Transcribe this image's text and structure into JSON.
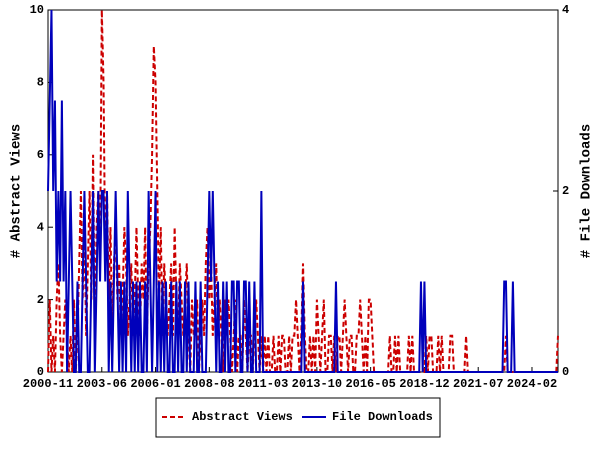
{
  "chart_data": {
    "type": "line",
    "ylabel": "# Abstract Views",
    "y2label": "# File Downloads",
    "x": [
      "2000-11",
      "2000-12",
      "2001-01",
      "2001-02",
      "2001-03",
      "2001-04",
      "2001-05",
      "2001-06",
      "2001-07",
      "2001-08",
      "2001-09",
      "2001-10",
      "2001-11",
      "2001-12",
      "2002-01",
      "2002-02",
      "2002-03",
      "2002-04",
      "2002-05",
      "2002-06",
      "2002-07",
      "2002-08",
      "2002-09",
      "2002-10",
      "2002-11",
      "2002-12",
      "2003-01",
      "2003-02",
      "2003-03",
      "2003-04",
      "2003-05",
      "2003-06",
      "2003-07",
      "2003-08",
      "2003-09",
      "2003-10",
      "2003-11",
      "2003-12",
      "2004-01",
      "2004-02",
      "2004-03",
      "2004-04",
      "2004-05",
      "2004-06",
      "2004-07",
      "2004-08",
      "2004-09",
      "2004-10",
      "2004-11",
      "2004-12",
      "2005-01",
      "2005-02",
      "2005-03",
      "2005-04",
      "2005-05",
      "2005-06",
      "2005-07",
      "2005-08",
      "2005-09",
      "2005-10",
      "2005-11",
      "2005-12",
      "2006-01",
      "2006-02",
      "2006-03",
      "2006-04",
      "2006-05",
      "2006-06",
      "2006-07",
      "2006-08",
      "2006-09",
      "2006-10",
      "2006-11",
      "2006-12",
      "2007-01",
      "2007-02",
      "2007-03",
      "2007-04",
      "2007-05",
      "2007-06",
      "2007-07",
      "2007-08",
      "2007-09",
      "2007-10",
      "2007-11",
      "2007-12",
      "2008-01",
      "2008-02",
      "2008-03",
      "2008-04",
      "2008-05",
      "2008-06",
      "2008-07",
      "2008-08",
      "2008-09",
      "2008-10",
      "2008-11",
      "2008-12",
      "2009-01",
      "2009-02",
      "2009-03",
      "2009-04",
      "2009-05",
      "2009-06",
      "2009-07",
      "2009-08",
      "2009-09",
      "2009-10",
      "2009-11",
      "2009-12",
      "2010-01",
      "2010-02",
      "2010-03",
      "2010-04",
      "2010-05",
      "2010-06",
      "2010-07",
      "2010-08",
      "2010-09",
      "2010-10",
      "2010-11",
      "2010-12",
      "2011-01",
      "2011-02",
      "2011-03",
      "2011-04",
      "2011-05",
      "2011-06",
      "2011-07",
      "2011-08",
      "2011-09",
      "2011-10",
      "2011-11",
      "2011-12",
      "2012-01",
      "2012-02",
      "2012-03",
      "2012-04",
      "2012-05",
      "2012-06",
      "2012-07",
      "2012-08",
      "2012-09",
      "2012-10",
      "2012-11",
      "2012-12",
      "2013-01",
      "2013-02",
      "2013-03",
      "2013-04",
      "2013-05",
      "2013-06",
      "2013-07",
      "2013-08",
      "2013-09",
      "2013-10",
      "2013-11",
      "2013-12",
      "2014-01",
      "2014-02",
      "2014-03",
      "2014-04",
      "2014-05",
      "2014-06",
      "2014-07",
      "2014-08",
      "2014-09",
      "2014-10",
      "2014-11",
      "2014-12",
      "2015-01",
      "2015-02",
      "2015-03",
      "2015-04",
      "2015-05",
      "2015-06",
      "2015-07",
      "2015-08",
      "2015-09",
      "2015-10",
      "2015-11",
      "2015-12",
      "2016-01",
      "2016-02",
      "2016-03",
      "2016-04",
      "2016-05",
      "2016-06",
      "2016-07",
      "2016-08",
      "2016-09",
      "2016-10",
      "2016-11",
      "2016-12",
      "2017-01",
      "2017-02",
      "2017-03",
      "2017-04",
      "2017-05",
      "2017-06",
      "2017-07",
      "2017-08",
      "2017-09",
      "2017-10",
      "2017-11",
      "2017-12",
      "2018-01",
      "2018-02",
      "2018-03",
      "2018-04",
      "2018-05",
      "2018-06",
      "2018-07",
      "2018-08",
      "2018-09",
      "2018-10",
      "2018-11",
      "2018-12",
      "2019-01",
      "2019-02",
      "2019-03",
      "2019-04",
      "2019-05",
      "2019-06",
      "2019-07",
      "2019-08",
      "2019-09",
      "2019-10",
      "2019-11",
      "2019-12",
      "2020-01",
      "2020-02",
      "2020-03",
      "2020-04",
      "2020-05",
      "2020-06",
      "2020-07",
      "2020-08",
      "2020-09",
      "2020-10",
      "2020-11",
      "2020-12",
      "2021-01",
      "2021-02",
      "2021-03",
      "2021-04",
      "2021-05",
      "2021-06",
      "2021-07",
      "2021-08",
      "2021-09",
      "2021-10",
      "2021-11",
      "2021-12",
      "2022-01",
      "2022-02",
      "2022-03",
      "2022-04",
      "2022-05",
      "2022-06",
      "2022-07",
      "2022-08",
      "2022-09",
      "2022-10",
      "2022-11",
      "2022-12",
      "2023-01",
      "2023-02",
      "2023-03",
      "2023-04",
      "2023-05",
      "2023-06",
      "2023-07",
      "2023-08",
      "2023-09",
      "2023-10",
      "2023-11",
      "2023-12",
      "2024-01",
      "2024-02",
      "2024-03",
      "2024-04",
      "2024-05",
      "2024-06",
      "2024-07",
      "2024-08",
      "2024-09",
      "2024-10",
      "2024-11",
      "2024-12",
      "2025-01",
      "2025-02",
      "2025-03",
      "2025-04",
      "2025-05"
    ],
    "xticks": [
      "2000-11",
      "2003-06",
      "2006-01",
      "2008-08",
      "2011-03",
      "2013-10",
      "2016-05",
      "2018-12",
      "2021-07",
      "2024-02"
    ],
    "ylim": [
      0,
      10
    ],
    "yticks": [
      0,
      2,
      4,
      6,
      8,
      10
    ],
    "y2lim": [
      0,
      4
    ],
    "y2ticks": [
      0,
      2,
      4
    ],
    "series": [
      {
        "name": "Abstract Views",
        "color": "#cc0000",
        "dashed": true,
        "values": [
          0,
          2,
          0,
          1,
          0,
          2,
          3,
          1,
          0,
          1,
          2,
          1,
          0,
          1,
          0,
          2,
          0,
          1,
          3,
          5,
          2,
          4,
          1,
          3,
          5,
          2,
          6,
          1,
          4,
          5,
          3,
          10,
          8,
          3,
          5,
          2,
          4,
          1,
          3,
          4,
          2,
          3,
          1,
          2,
          4,
          3,
          1,
          2,
          3,
          1,
          2,
          4,
          2,
          1,
          3,
          2,
          4,
          1,
          3,
          4,
          6,
          9,
          8,
          5,
          2,
          4,
          1,
          3,
          2,
          1,
          2,
          3,
          1,
          4,
          2,
          1,
          3,
          2,
          1,
          2,
          3,
          1,
          0,
          2,
          1,
          1,
          2,
          0,
          1,
          2,
          1,
          3,
          4,
          2,
          3,
          1,
          2,
          3,
          1,
          2,
          1,
          0,
          2,
          1,
          2,
          1,
          0,
          1,
          2,
          0,
          1,
          1,
          0,
          2,
          1,
          0,
          1,
          1,
          0,
          1,
          2,
          1,
          0,
          1,
          0,
          1,
          0,
          1,
          0,
          0,
          1,
          0,
          0,
          1,
          0,
          1,
          1,
          0,
          0,
          1,
          0,
          1,
          1,
          2,
          1,
          0,
          1,
          3,
          1,
          0,
          0,
          1,
          0,
          1,
          0,
          2,
          1,
          0,
          1,
          2,
          0,
          0,
          1,
          1,
          0,
          1,
          0,
          1,
          1,
          0,
          1,
          2,
          1,
          0,
          1,
          1,
          0,
          0,
          1,
          1,
          2,
          1,
          0,
          1,
          0,
          2,
          2,
          1,
          0,
          0,
          0,
          0,
          0,
          0,
          0,
          0,
          0,
          1,
          0,
          0,
          1,
          0,
          1,
          0,
          0,
          0,
          0,
          0,
          1,
          0,
          1,
          0,
          0,
          0,
          0,
          0,
          0,
          0,
          1,
          0,
          1,
          1,
          0,
          0,
          0,
          1,
          0,
          1,
          0,
          0,
          0,
          0,
          1,
          1,
          0,
          0,
          0,
          0,
          0,
          0,
          0,
          1,
          0,
          0,
          0,
          0,
          0,
          0,
          0,
          0,
          0,
          0,
          0,
          0,
          0,
          0,
          0,
          0,
          0,
          0,
          0,
          0,
          0,
          0,
          1,
          0,
          0,
          0,
          0,
          0,
          0,
          0,
          0,
          0,
          0,
          0,
          0,
          0,
          0,
          0,
          0,
          0,
          0,
          0,
          0,
          0,
          0,
          0,
          0,
          0,
          0,
          0,
          0,
          0,
          1
        ]
      },
      {
        "name": "File Downloads",
        "color": "#0000bb",
        "axis": "y2",
        "values": [
          2,
          3,
          4,
          2,
          3,
          1,
          2,
          1,
          3,
          1,
          2,
          0,
          1,
          2,
          1,
          0,
          0,
          1,
          0,
          0,
          1,
          2,
          1,
          0,
          0,
          1,
          2,
          0,
          1,
          2,
          1,
          2,
          2,
          1,
          2,
          0,
          1,
          0,
          1,
          2,
          1,
          0,
          1,
          0,
          1,
          0,
          2,
          1,
          0,
          1,
          0,
          1,
          0,
          1,
          0,
          0,
          1,
          0,
          2,
          1,
          0,
          1,
          2,
          0,
          1,
          0,
          1,
          0,
          1,
          0,
          0,
          1,
          0,
          0,
          1,
          0,
          1,
          0,
          0,
          1,
          0,
          1,
          0,
          0,
          0,
          1,
          0,
          0,
          1,
          0,
          0,
          0,
          1,
          2,
          1,
          2,
          1,
          0,
          1,
          0,
          0,
          1,
          0,
          1,
          0,
          0,
          1,
          1,
          0,
          1,
          1,
          0,
          0,
          1,
          1,
          0,
          1,
          0,
          0,
          1,
          0,
          0,
          0,
          2,
          0,
          0,
          0,
          0,
          0,
          0,
          0,
          0,
          0,
          0,
          0,
          0,
          0,
          0,
          0,
          0,
          0,
          0,
          0,
          0,
          0,
          0,
          0,
          1,
          0,
          0,
          0,
          0,
          0,
          0,
          0,
          0,
          0,
          0,
          0,
          0,
          0,
          0,
          0,
          0,
          0,
          0,
          1,
          0,
          0,
          0,
          0,
          0,
          0,
          0,
          0,
          0,
          0,
          0,
          0,
          0,
          0,
          0,
          0,
          0,
          0,
          0,
          0,
          0,
          0,
          0,
          0,
          0,
          0,
          0,
          0,
          0,
          0,
          0,
          0,
          0,
          0,
          0,
          0,
          0,
          0,
          0,
          0,
          0,
          0,
          0,
          0,
          0,
          0,
          0,
          0,
          1,
          0,
          1,
          0,
          0,
          0,
          0,
          0,
          0,
          0,
          0,
          0,
          0,
          0,
          0,
          0,
          0,
          0,
          0,
          0,
          0,
          0,
          0,
          0,
          0,
          0,
          0,
          0,
          0,
          0,
          0,
          0,
          0,
          0,
          0,
          0,
          0,
          0,
          0,
          0,
          0,
          0,
          0,
          0,
          0,
          0,
          0,
          0,
          1,
          1,
          0,
          0,
          0,
          1,
          0,
          0,
          0,
          0,
          0,
          0,
          0,
          0,
          0,
          0,
          0,
          0,
          0,
          0,
          0,
          0,
          0,
          0,
          0,
          0,
          0,
          0,
          0,
          0,
          0,
          0
        ]
      }
    ]
  }
}
